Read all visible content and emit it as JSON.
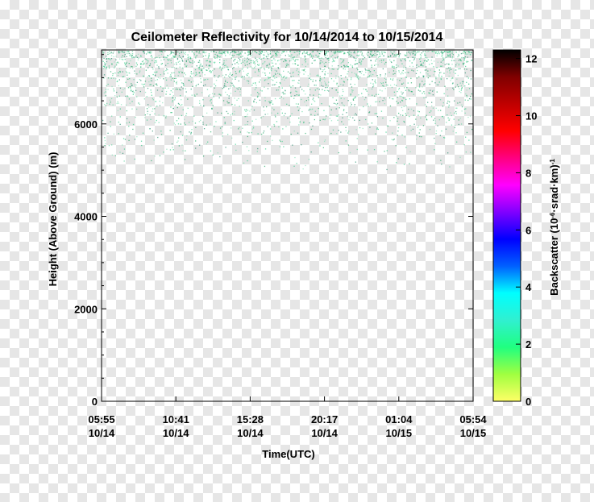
{
  "chart_data": {
    "type": "heatmap",
    "title": "Ceilometer Reflectivity for 10/14/2014 to 10/15/2014",
    "xlabel": "Time(UTC)",
    "ylabel": "Height (Above Ground) (m)",
    "ylim": [
      0,
      7600
    ],
    "yticks": [
      0,
      2000,
      4000,
      6000
    ],
    "xticks": [
      {
        "time": "05:55",
        "date": "10/14"
      },
      {
        "time": "10:41",
        "date": "10/14"
      },
      {
        "time": "15:28",
        "date": "10/14"
      },
      {
        "time": "20:17",
        "date": "10/14"
      },
      {
        "time": "01:04",
        "date": "10/15"
      },
      {
        "time": "05:54",
        "date": "10/15"
      }
    ],
    "colorbar": {
      "label_main": "Backscatter  (10",
      "label_exp1": "-6",
      "label_mid": "·srad·km)",
      "label_exp2": "-1",
      "range": [
        0,
        12.3
      ],
      "ticks": [
        0,
        2,
        4,
        6,
        8,
        10,
        12
      ],
      "colors": [
        "#ffff66",
        "#a0ff40",
        "#20ff80",
        "#30f0d0",
        "#00ffff",
        "#0060ff",
        "#0000ff",
        "#8000ff",
        "#ff00ff",
        "#ff0080",
        "#ff0000",
        "#c00000",
        "#800000",
        "#000000"
      ]
    },
    "signal": {
      "description_color": "#22aa66",
      "full_density_above_m": 7000,
      "fade_to_zero_m": 5000
    }
  }
}
